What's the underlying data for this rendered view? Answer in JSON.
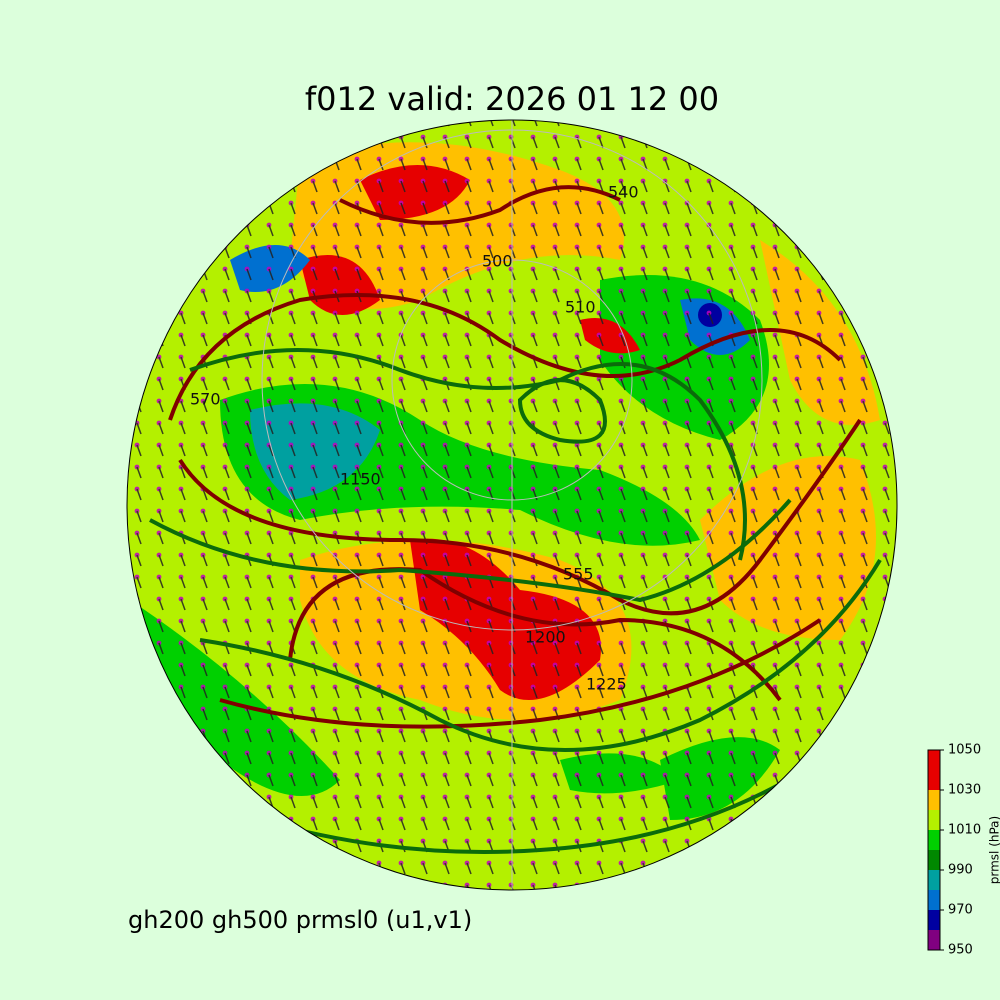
{
  "title": "f012 valid:   2026 01 12 00",
  "footer": "gh200 gh500 prmsl0 (u1,v1)",
  "contour_labels": [
    "1150",
    "1200",
    "1225",
    "555",
    "540",
    "510",
    "570",
    "500"
  ],
  "colorbar": {
    "label": "prmsl (hPa)",
    "levels": [
      950,
      960,
      970,
      980,
      990,
      1000,
      1010,
      1020,
      1030,
      1050
    ],
    "colors": [
      "#800080",
      "#0000a0",
      "#0070d0",
      "#00a0a0",
      "#008800",
      "#00d000",
      "#b4f000",
      "#ffc000",
      "#e60000"
    ],
    "lim": [
      950,
      1050
    ],
    "ticks": [
      950,
      970,
      990,
      1010,
      1030,
      1050
    ]
  }
}
